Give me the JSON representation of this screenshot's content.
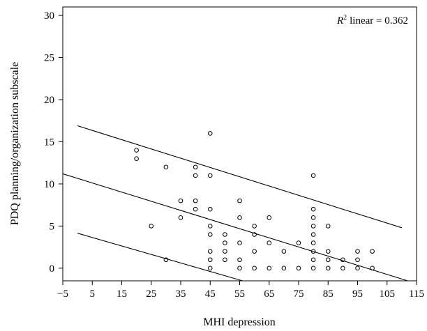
{
  "chart_data": {
    "type": "scatter",
    "title": "",
    "xlabel": "MHI depression",
    "ylabel": "PDQ planning/organization subscale",
    "annotation": {
      "r2_symbol": "R",
      "r2_superscript": "2",
      "r2_text": "linear = 0.362"
    },
    "xlim": [
      -5,
      115
    ],
    "ylim": [
      -1.5,
      31
    ],
    "x_ticks": [
      -5,
      5,
      15,
      25,
      35,
      45,
      55,
      65,
      75,
      85,
      95,
      105,
      115
    ],
    "y_ticks": [
      0,
      5,
      10,
      15,
      20,
      25,
      30
    ],
    "grid": false,
    "legend": "none",
    "marker": "open-circle",
    "points": [
      [
        20,
        14
      ],
      [
        20,
        13
      ],
      [
        25,
        5
      ],
      [
        30,
        12
      ],
      [
        30,
        1
      ],
      [
        35,
        8
      ],
      [
        35,
        6
      ],
      [
        40,
        12
      ],
      [
        40,
        11
      ],
      [
        40,
        8
      ],
      [
        40,
        7
      ],
      [
        45,
        16
      ],
      [
        45,
        11
      ],
      [
        45,
        7
      ],
      [
        45,
        5
      ],
      [
        45,
        4
      ],
      [
        45,
        2
      ],
      [
        45,
        1
      ],
      [
        45,
        0
      ],
      [
        50,
        4
      ],
      [
        50,
        3
      ],
      [
        50,
        2
      ],
      [
        50,
        1
      ],
      [
        55,
        8
      ],
      [
        55,
        6
      ],
      [
        55,
        3
      ],
      [
        55,
        1
      ],
      [
        55,
        0
      ],
      [
        60,
        5
      ],
      [
        60,
        4
      ],
      [
        60,
        2
      ],
      [
        60,
        0
      ],
      [
        65,
        6
      ],
      [
        65,
        3
      ],
      [
        65,
        0
      ],
      [
        70,
        2
      ],
      [
        70,
        0
      ],
      [
        75,
        3
      ],
      [
        75,
        0
      ],
      [
        80,
        11
      ],
      [
        80,
        7
      ],
      [
        80,
        6
      ],
      [
        80,
        5
      ],
      [
        80,
        4
      ],
      [
        80,
        3
      ],
      [
        80,
        2
      ],
      [
        80,
        1
      ],
      [
        80,
        0
      ],
      [
        85,
        5
      ],
      [
        85,
        2
      ],
      [
        85,
        1
      ],
      [
        85,
        0
      ],
      [
        90,
        1
      ],
      [
        90,
        0
      ],
      [
        95,
        2
      ],
      [
        95,
        1
      ],
      [
        95,
        0
      ],
      [
        100,
        2
      ],
      [
        100,
        0
      ]
    ],
    "lines": [
      {
        "x": [
          0,
          110
        ],
        "y": [
          16.9,
          4.8
        ]
      },
      {
        "x": [
          -5,
          112
        ],
        "y": [
          11.2,
          -1.5
        ]
      },
      {
        "x": [
          0,
          56
        ],
        "y": [
          4.15,
          -1.5
        ]
      }
    ]
  }
}
